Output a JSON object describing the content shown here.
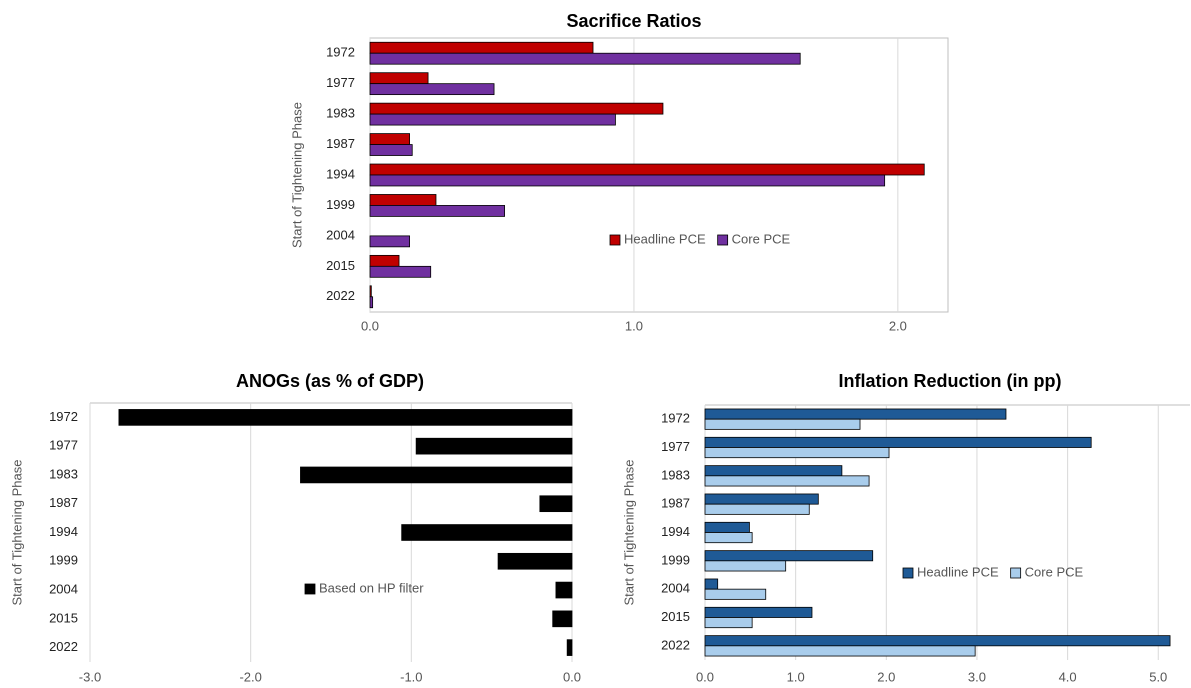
{
  "chart_data": [
    {
      "type": "bar",
      "orientation": "horizontal",
      "title": "Sacrifice Ratios",
      "y_label": "Start of Tightening Phase",
      "categories": [
        "1972",
        "1977",
        "1983",
        "1987",
        "1994",
        "1999",
        "2004",
        "2015",
        "2022"
      ],
      "series": [
        {
          "name": "Headline PCE",
          "color": "#c00000",
          "values": [
            0.845,
            0.22,
            1.11,
            0.15,
            2.1,
            0.25,
            null,
            0.11,
            0.005
          ]
        },
        {
          "name": "Core PCE",
          "color": "#7030a0",
          "values": [
            1.63,
            0.47,
            0.93,
            0.16,
            1.95,
            0.51,
            0.15,
            0.23,
            0.01
          ]
        }
      ],
      "xlim": [
        0,
        2.19
      ],
      "xticks": [
        {
          "value": 0,
          "label": "0.0"
        },
        {
          "value": 1,
          "label": "1.0"
        },
        {
          "value": 2,
          "label": "2.0"
        }
      ],
      "grid": true
    },
    {
      "type": "bar",
      "orientation": "horizontal",
      "title": "ANOGs (as % of GDP)",
      "y_label": "Start of Tightening Phase",
      "categories": [
        "1972",
        "1977",
        "1983",
        "1987",
        "1994",
        "1999",
        "2004",
        "2015",
        "2022"
      ],
      "series": [
        {
          "name": "Based on HP filter",
          "color": "#000000",
          "values": [
            -2.82,
            -0.97,
            -1.69,
            -0.2,
            -1.06,
            -0.46,
            -0.1,
            -0.12,
            -0.03
          ]
        }
      ],
      "xlim": [
        -3,
        0
      ],
      "xticks": [
        {
          "value": -3,
          "label": "-3.0"
        },
        {
          "value": -2,
          "label": "-2.0"
        },
        {
          "value": -1,
          "label": "-1.0"
        },
        {
          "value": 0,
          "label": "0.0"
        }
      ],
      "grid": true
    },
    {
      "type": "bar",
      "orientation": "horizontal",
      "title": "Inflation Reduction (in pp)",
      "y_label": "Start of Tightening Phase",
      "categories": [
        "1972",
        "1977",
        "1983",
        "1987",
        "1994",
        "1999",
        "2004",
        "2015",
        "2022"
      ],
      "series": [
        {
          "name": "Headline PCE",
          "color": "#1f5a96",
          "values": [
            3.32,
            4.26,
            1.51,
            1.25,
            0.49,
            1.85,
            0.14,
            1.18,
            5.13
          ]
        },
        {
          "name": "Core PCE",
          "color": "#a9cdec",
          "values": [
            1.71,
            2.03,
            1.81,
            1.15,
            0.52,
            0.89,
            0.67,
            0.52,
            2.98
          ]
        }
      ],
      "xlim": [
        0,
        5.35
      ],
      "xticks": [
        {
          "value": 0,
          "label": "0.0"
        },
        {
          "value": 1,
          "label": "1.0"
        },
        {
          "value": 2,
          "label": "2.0"
        },
        {
          "value": 3,
          "label": "3.0"
        },
        {
          "value": 4,
          "label": "4.0"
        },
        {
          "value": 5,
          "label": "5.0"
        }
      ],
      "grid": true
    }
  ]
}
